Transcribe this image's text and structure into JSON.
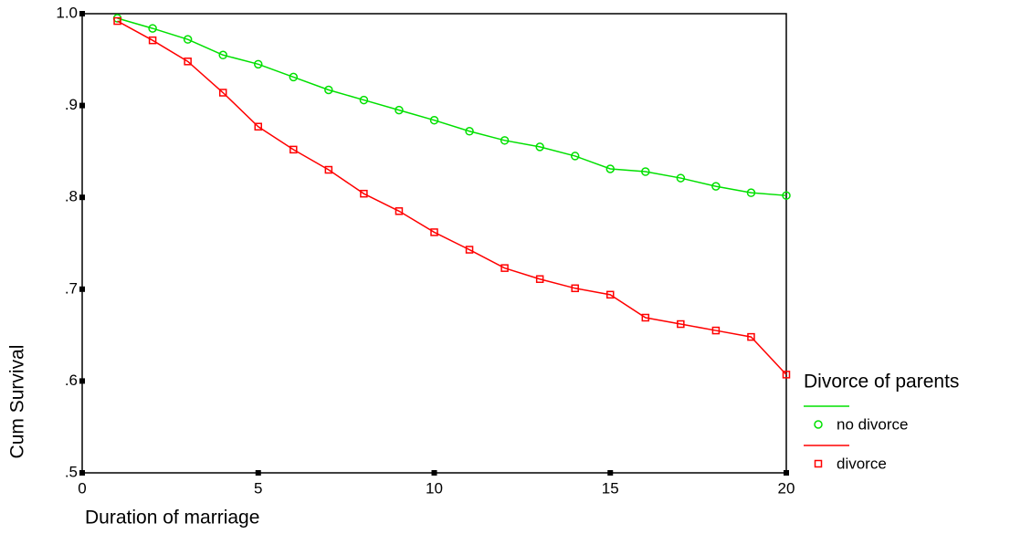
{
  "chart_data": {
    "type": "line",
    "x_label": "Duration of marriage",
    "y_label": "Cum Survival",
    "legend_title": "Divorce of parents",
    "x": [
      1,
      2,
      3,
      4,
      5,
      6,
      7,
      8,
      9,
      10,
      11,
      12,
      13,
      14,
      15,
      16,
      17,
      18,
      19,
      20
    ],
    "series": [
      {
        "name": "no divorce",
        "color": "#00e000",
        "marker": "circle",
        "values": [
          0.995,
          0.984,
          0.972,
          0.955,
          0.945,
          0.931,
          0.917,
          0.906,
          0.895,
          0.884,
          0.872,
          0.862,
          0.855,
          0.845,
          0.831,
          0.828,
          0.821,
          0.812,
          0.805,
          0.802
        ]
      },
      {
        "name": "divorce",
        "color": "#ff0000",
        "marker": "square",
        "values": [
          0.992,
          0.971,
          0.948,
          0.914,
          0.877,
          0.852,
          0.83,
          0.804,
          0.785,
          0.762,
          0.743,
          0.723,
          0.711,
          0.701,
          0.694,
          0.669,
          0.662,
          0.655,
          0.648,
          0.607
        ]
      }
    ],
    "xlim": [
      0,
      20
    ],
    "xticks": [
      0,
      5,
      10,
      15,
      20
    ],
    "ylim": [
      0.5,
      1.0
    ],
    "yticks": [
      {
        "value": 0.5,
        "label": ".5"
      },
      {
        "value": 0.6,
        "label": ".6"
      },
      {
        "value": 0.7,
        "label": ".7"
      },
      {
        "value": 0.8,
        "label": ".8"
      },
      {
        "value": 0.9,
        "label": ".9"
      },
      {
        "value": 1.0,
        "label": "1.0"
      }
    ],
    "grid": false,
    "legend": "right"
  }
}
